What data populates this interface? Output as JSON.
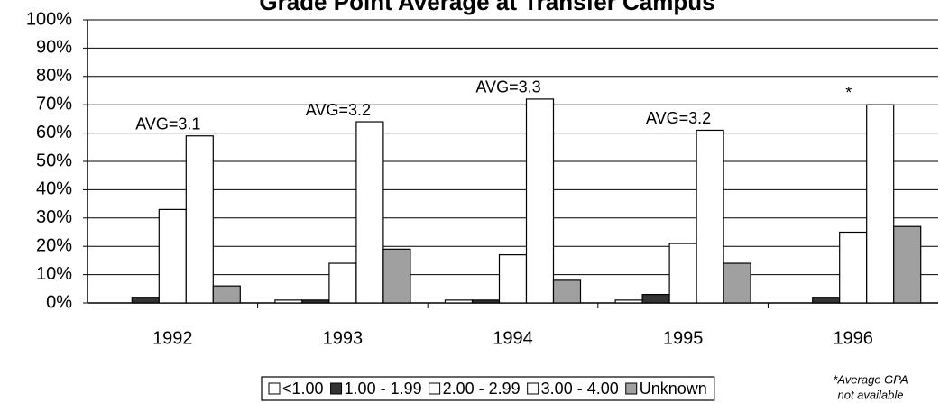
{
  "chart_data": {
    "type": "bar",
    "title": "Grade Point Average at Transfer Campus",
    "categories": [
      "1992",
      "1993",
      "1994",
      "1995",
      "1996"
    ],
    "series": [
      {
        "name": "<1.00",
        "color": "#ffffff",
        "values": [
          0,
          1,
          1,
          1,
          0
        ]
      },
      {
        "name": "1.00 - 1.99",
        "color": "#333333",
        "values": [
          2,
          1,
          1,
          3,
          2
        ]
      },
      {
        "name": "2.00 - 2.99",
        "color": "#ffffff",
        "values": [
          33,
          14,
          17,
          21,
          25
        ]
      },
      {
        "name": "3.00 - 4.00",
        "color": "#ffffff",
        "values": [
          59,
          64,
          72,
          61,
          70
        ]
      },
      {
        "name": "Unknown",
        "color": "#a0a0a0",
        "values": [
          6,
          19,
          8,
          14,
          27
        ]
      }
    ],
    "annotations": [
      {
        "text": "AVG=3.1",
        "category": "1992"
      },
      {
        "text": "AVG=3.2",
        "category": "1993"
      },
      {
        "text": "AVG=3.3",
        "category": "1994"
      },
      {
        "text": "AVG=3.2",
        "category": "1995"
      },
      {
        "text": "*",
        "category": "1996"
      }
    ],
    "footnote": [
      "*Average GPA",
      "not available"
    ],
    "ylim": [
      0,
      100
    ],
    "yticks": [
      {
        "value": 0,
        "label": "0%"
      },
      {
        "value": 10,
        "label": "10%"
      },
      {
        "value": 20,
        "label": "20%"
      },
      {
        "value": 30,
        "label": "30%"
      },
      {
        "value": 40,
        "label": "40%"
      },
      {
        "value": 50,
        "label": "50%"
      },
      {
        "value": 60,
        "label": "60%"
      },
      {
        "value": 70,
        "label": "70%"
      },
      {
        "value": 80,
        "label": "80%"
      },
      {
        "value": 90,
        "label": "90%"
      },
      {
        "value": 100,
        "label": "100%"
      }
    ],
    "grid": true,
    "legend": "bottom"
  }
}
